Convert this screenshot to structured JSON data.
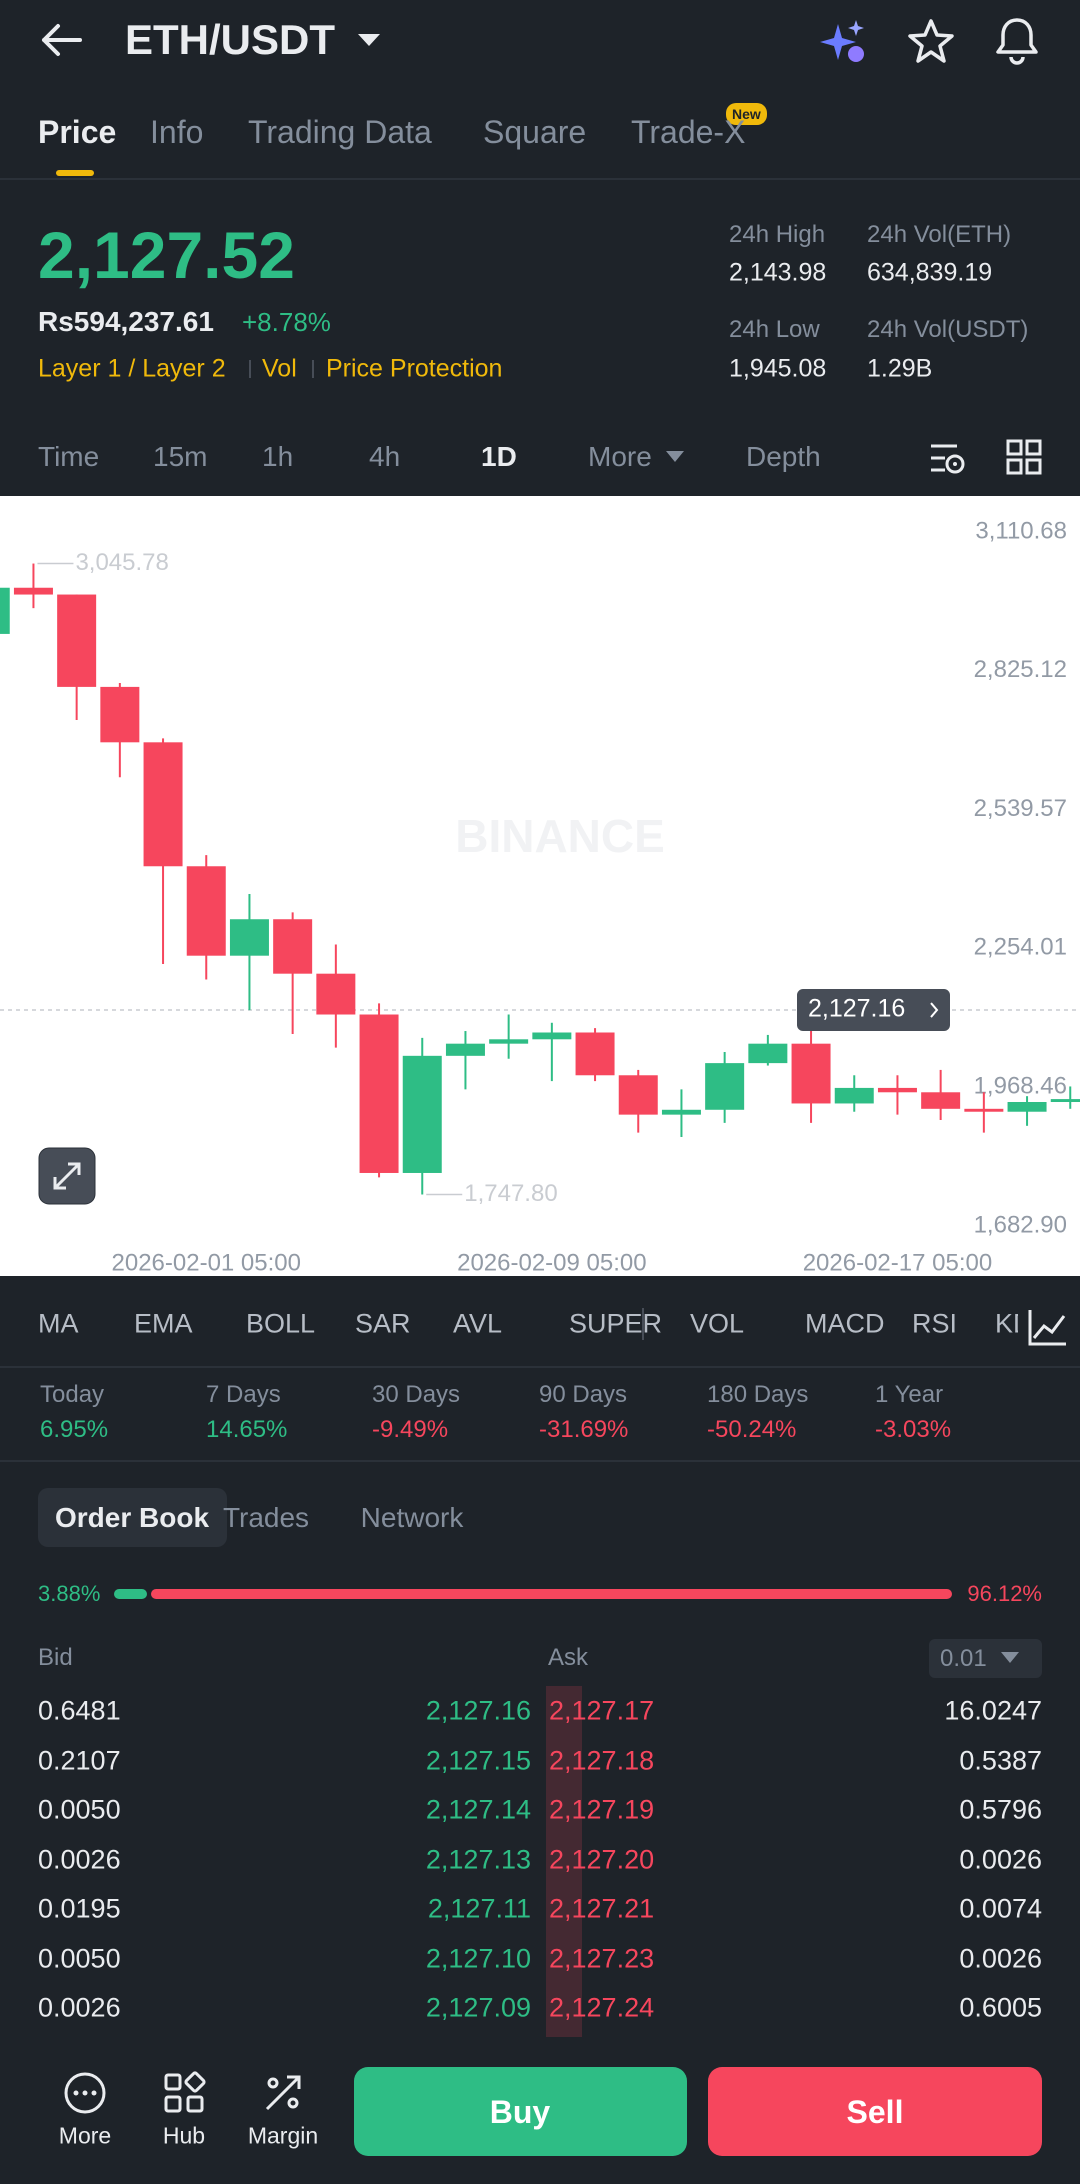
{
  "header": {
    "title": "ETH/USDT"
  },
  "tabs": [
    "Price",
    "Info",
    "Trading Data",
    "Square",
    "Trade-X"
  ],
  "tab_badge": "New",
  "ticker": {
    "price": "2,127.52",
    "local_price": "Rs594,237.61",
    "change": "+8.78%",
    "tags": [
      "Layer 1 / Layer 2",
      "Vol",
      "Price Protection"
    ],
    "stats": [
      {
        "label": "24h High",
        "value": "2,143.98"
      },
      {
        "label": "24h Vol(ETH)",
        "value": "634,839.19"
      },
      {
        "label": "24h Low",
        "value": "1,945.08"
      },
      {
        "label": "24h Vol(USDT)",
        "value": "1.29B"
      }
    ]
  },
  "timeframes": [
    "Time",
    "15m",
    "1h",
    "4h",
    "1D",
    "More",
    "Depth"
  ],
  "chart_data": {
    "type": "candlestick",
    "watermark": "BINANCE",
    "categories": [
      null,
      null,
      null,
      null,
      null,
      "2026-02-01 05:00",
      null,
      null,
      null,
      null,
      null,
      null,
      null,
      "2026-02-09 05:00",
      null,
      null,
      null,
      null,
      null,
      null,
      null,
      "2026-02-17 05:00",
      null,
      null,
      null,
      null
    ],
    "open": [
      2901,
      2996,
      2982,
      2792,
      2678,
      2423,
      2239,
      2314,
      2202,
      2118,
      1792,
      2033,
      2058,
      2067,
      2081,
      1993,
      1912,
      1922,
      2018,
      2058,
      1935,
      1967,
      1958,
      1924,
      1918,
      1938
    ],
    "high": [
      3010,
      3045.78,
      2982,
      2800,
      2686,
      2446,
      2366,
      2328,
      2262,
      2141,
      2070,
      2084,
      2118,
      2101,
      2090,
      2004,
      1964,
      2041,
      2076,
      2084,
      1993,
      1993,
      2004,
      1958,
      1950,
      1970
    ],
    "low": [
      2890,
      2954,
      2724,
      2606,
      2222,
      2190,
      2127,
      2078,
      2050,
      1783,
      1747.8,
      1964,
      2027,
      1981,
      1981,
      1875,
      1866,
      1895,
      2013,
      1895,
      1918,
      1912,
      1901,
      1875,
      1889,
      1924
    ],
    "close": [
      2996,
      2982,
      2792,
      2678,
      2423,
      2239,
      2314,
      2202,
      2118,
      1792,
      2033,
      2058,
      2067,
      2081,
      1993,
      1912,
      1922,
      2018,
      2058,
      1935,
      1967,
      1958,
      1924,
      1918,
      1938,
      1944
    ],
    "up_color": "#2ebd85",
    "down_color": "#f6465d",
    "ylim": [
      1682.9,
      3110.68
    ],
    "yticks": [
      {
        "value": 3110.68,
        "label": "3,110.68"
      },
      {
        "value": 2825.12,
        "label": "2,825.12"
      },
      {
        "value": 2539.57,
        "label": "2,539.57"
      },
      {
        "value": 2254.01,
        "label": "2,254.01"
      },
      {
        "value": 1968.46,
        "label": "1,968.46"
      },
      {
        "value": 1682.9,
        "label": "1,682.90"
      }
    ],
    "max_label": {
      "value": 3045.78,
      "label": "3,045.78"
    },
    "min_label": {
      "value": 1747.8,
      "label": "1,747.80"
    },
    "last_price": {
      "value": 2127.16,
      "label": "2,127.16"
    }
  },
  "indicators": [
    "MA",
    "EMA",
    "BOLL",
    "SAR",
    "AVL",
    "SUPER",
    "VOL",
    "MACD",
    "RSI",
    "KDJ"
  ],
  "performance": [
    {
      "label": "Today",
      "value": "6.95%"
    },
    {
      "label": "7 Days",
      "value": "14.65%"
    },
    {
      "label": "30 Days",
      "value": "-9.49%"
    },
    {
      "label": "90 Days",
      "value": "-31.69%"
    },
    {
      "label": "180 Days",
      "value": "-50.24%"
    },
    {
      "label": "1 Year",
      "value": "-3.03%"
    }
  ],
  "order_book": {
    "tabs": [
      "Order Book",
      "Trades",
      "Network"
    ],
    "bid_ratio": {
      "value": 3.88,
      "label": "3.88%"
    },
    "ask_ratio": {
      "value": 96.12,
      "label": "96.12%"
    },
    "bid_header": "Bid",
    "ask_header": "Ask",
    "precision": "0.01",
    "rows": [
      [
        "0.6481",
        "2,127.16",
        "2,127.17",
        "16.0247"
      ],
      [
        "0.2107",
        "2,127.15",
        "2,127.18",
        "0.5387"
      ],
      [
        "0.0050",
        "2,127.14",
        "2,127.19",
        "0.5796"
      ],
      [
        "0.0026",
        "2,127.13",
        "2,127.20",
        "0.0026"
      ],
      [
        "0.0195",
        "2,127.11",
        "2,127.21",
        "0.0074"
      ],
      [
        "0.0050",
        "2,127.10",
        "2,127.23",
        "0.0026"
      ],
      [
        "0.0026",
        "2,127.09",
        "2,127.24",
        "0.6005"
      ]
    ]
  },
  "bottom_nav": [
    "More",
    "Hub",
    "Margin"
  ],
  "actions": [
    "Buy",
    "Sell"
  ]
}
